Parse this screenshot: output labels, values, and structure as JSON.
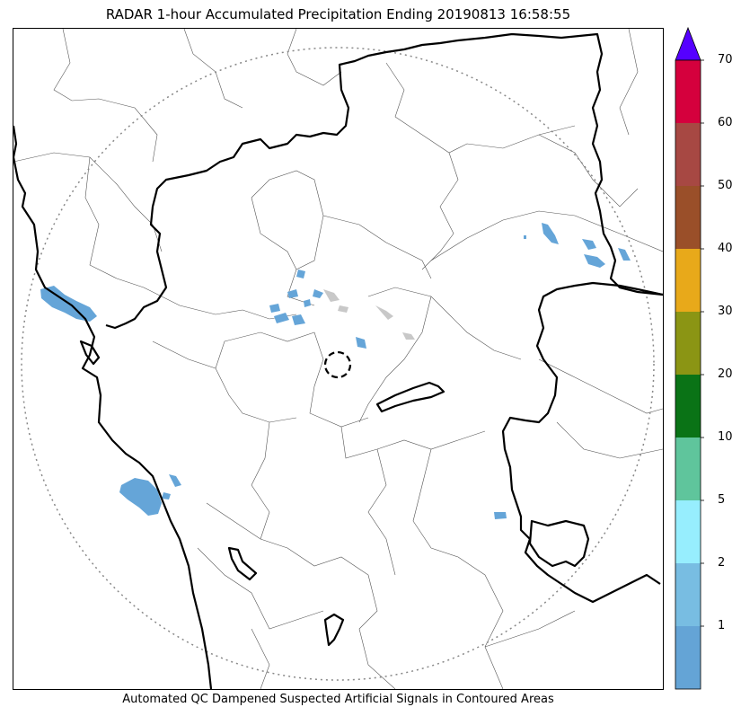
{
  "title": "RADAR 1-hour Accumulated Precipitation Ending 20190813 16:58:55",
  "caption": "Automated QC Dampened Suspected Artificial Signals in Contoured Areas",
  "colorbar": {
    "ticks": [
      "1",
      "2",
      "5",
      "10",
      "20",
      "30",
      "40",
      "50",
      "60",
      "70"
    ],
    "bands": [
      "#64a4d6",
      "#78bde2",
      "#97eefe",
      "#5fc59c",
      "#0a7316",
      "#8b9514",
      "#e8a91a",
      "#9a4f29",
      "#a74843",
      "#d5003d"
    ],
    "extend_color": "#5500ff"
  },
  "colors": {
    "rain_light": "#65a5d8",
    "qc_gray": "#c8c8c8",
    "state_border": "#000000",
    "district_border": "#555555",
    "range_ring": "#888888"
  }
}
